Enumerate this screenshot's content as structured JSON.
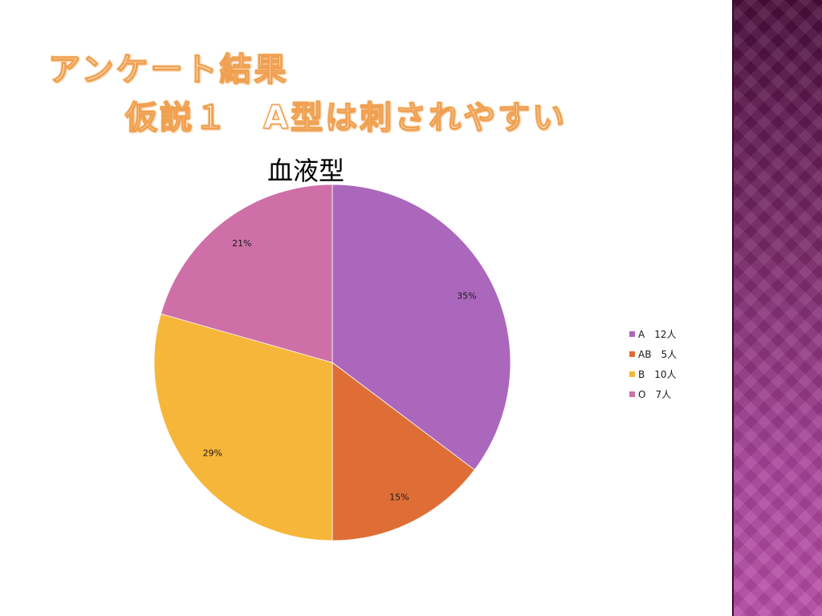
{
  "slide": {
    "title_line1": "アンケート結果",
    "title_line2": "仮説１　A型は刺されやすい",
    "accent_color": "#f0a050",
    "side_band_color": "#7a2a6a"
  },
  "chart_data": {
    "type": "pie",
    "title": "血液型",
    "categories": [
      "A",
      "AB",
      "B",
      "O"
    ],
    "values": [
      12,
      5,
      10,
      7
    ],
    "percent_labels": [
      "35%",
      "15%",
      "29%",
      "21%"
    ],
    "legend_labels": [
      "A　12人",
      "AB　5人",
      "B　10人",
      "O　7人"
    ],
    "colors": [
      "#ab67bc",
      "#df6e36",
      "#f6b63a",
      "#cf6fa8"
    ],
    "start_angle_deg": 0,
    "direction": "clockwise",
    "legend_position": "right"
  }
}
